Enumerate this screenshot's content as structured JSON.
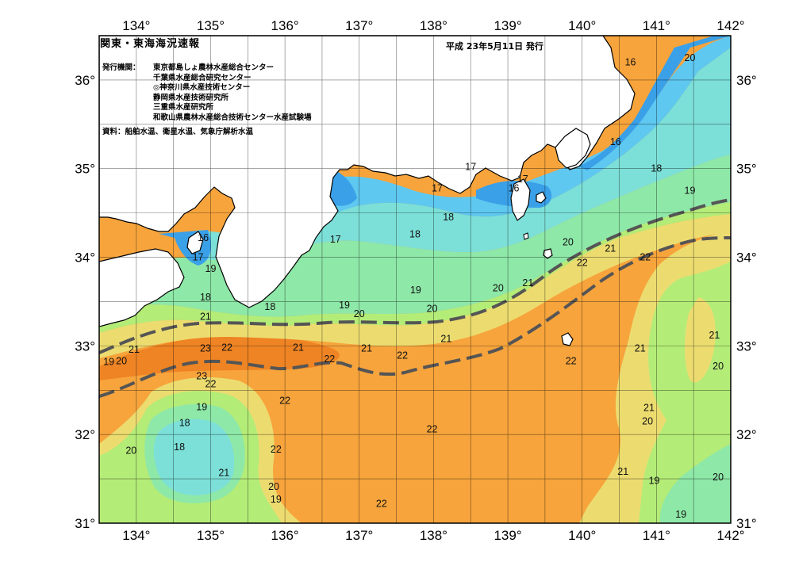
{
  "header": {
    "title": "関東・東海海況速報",
    "issued": "平成 23年5月11日 発行"
  },
  "issuer": {
    "label": "発行機関：",
    "organizations": [
      "東京都島しょ農林水産総合センター",
      "千葉県水産総合研究センター",
      "◎神奈川県水産技術センター",
      "静岡県水産技術研究所",
      "三重県水産研究所",
      "和歌山県農林水産総合技術センター水産試験場"
    ]
  },
  "sources": "資料：船舶水温、衛星水温、気象庁解析水温",
  "map": {
    "lon_range": [
      133.5,
      142
    ],
    "lat_range": [
      31,
      36.5
    ],
    "lon_ticks": [
      "134°",
      "135°",
      "136°",
      "137°",
      "138°",
      "139°",
      "140°",
      "141°",
      "142°"
    ],
    "lat_ticks": [
      "31°",
      "32°",
      "33°",
      "34°",
      "35°",
      "36°"
    ],
    "grid": "0.5 degree",
    "colors": {
      "land": "#ffffff",
      "t16": "#3aa0e8",
      "t17": "#5ec8f0",
      "t18": "#7ce0d8",
      "t19": "#8ee8a8",
      "t20": "#b4ec78",
      "t21": "#ecdc70",
      "t22": "#f7a43c",
      "t23": "#ef8424",
      "kuroshio_line": "#555555"
    },
    "isotherm_labels": [
      {
        "text": "16",
        "lon": 140.65,
        "lat": 36.2
      },
      {
        "text": "20",
        "lon": 141.45,
        "lat": 36.25
      },
      {
        "text": "16",
        "lon": 140.45,
        "lat": 35.3
      },
      {
        "text": "18",
        "lon": 141.0,
        "lat": 35.0
      },
      {
        "text": "17",
        "lon": 138.5,
        "lat": 35.02
      },
      {
        "text": "17",
        "lon": 139.2,
        "lat": 34.88
      },
      {
        "text": "16",
        "lon": 139.08,
        "lat": 34.78
      },
      {
        "text": "17",
        "lon": 138.05,
        "lat": 34.78
      },
      {
        "text": "19",
        "lon": 141.45,
        "lat": 34.75
      },
      {
        "text": "18",
        "lon": 138.2,
        "lat": 34.45
      },
      {
        "text": "18",
        "lon": 137.75,
        "lat": 34.26
      },
      {
        "text": "17",
        "lon": 136.68,
        "lat": 34.2
      },
      {
        "text": "16",
        "lon": 134.9,
        "lat": 34.22
      },
      {
        "text": "17",
        "lon": 134.83,
        "lat": 34.0
      },
      {
        "text": "19",
        "lon": 135.0,
        "lat": 33.87
      },
      {
        "text": "20",
        "lon": 139.81,
        "lat": 34.17
      },
      {
        "text": "21",
        "lon": 140.38,
        "lat": 34.1
      },
      {
        "text": "22",
        "lon": 140.0,
        "lat": 33.94
      },
      {
        "text": "22",
        "lon": 140.85,
        "lat": 34.0
      },
      {
        "text": "21",
        "lon": 139.27,
        "lat": 33.71
      },
      {
        "text": "20",
        "lon": 138.87,
        "lat": 33.65
      },
      {
        "text": "19",
        "lon": 137.76,
        "lat": 33.63
      },
      {
        "text": "18",
        "lon": 134.93,
        "lat": 33.55
      },
      {
        "text": "18",
        "lon": 135.8,
        "lat": 33.44
      },
      {
        "text": "19",
        "lon": 136.8,
        "lat": 33.46
      },
      {
        "text": "20",
        "lon": 137.0,
        "lat": 33.36
      },
      {
        "text": "20",
        "lon": 137.98,
        "lat": 33.42
      },
      {
        "text": "21",
        "lon": 134.93,
        "lat": 33.33
      },
      {
        "text": "21",
        "lon": 138.17,
        "lat": 33.08
      },
      {
        "text": "21",
        "lon": 136.18,
        "lat": 32.98
      },
      {
        "text": "21",
        "lon": 137.1,
        "lat": 32.97
      },
      {
        "text": "21",
        "lon": 133.97,
        "lat": 32.96
      },
      {
        "text": "23",
        "lon": 134.93,
        "lat": 32.97
      },
      {
        "text": "22",
        "lon": 135.22,
        "lat": 32.98
      },
      {
        "text": "22",
        "lon": 136.6,
        "lat": 32.85
      },
      {
        "text": "22",
        "lon": 137.58,
        "lat": 32.89
      },
      {
        "text": "22",
        "lon": 139.85,
        "lat": 32.83
      },
      {
        "text": "21",
        "lon": 140.78,
        "lat": 32.97
      },
      {
        "text": "21",
        "lon": 141.78,
        "lat": 33.12
      },
      {
        "text": "20",
        "lon": 141.83,
        "lat": 32.77
      },
      {
        "text": "19",
        "lon": 133.63,
        "lat": 32.82
      },
      {
        "text": "20",
        "lon": 133.8,
        "lat": 32.83
      },
      {
        "text": "23",
        "lon": 134.88,
        "lat": 32.66
      },
      {
        "text": "22",
        "lon": 135.0,
        "lat": 32.57
      },
      {
        "text": "22",
        "lon": 136.0,
        "lat": 32.38
      },
      {
        "text": "19",
        "lon": 134.88,
        "lat": 32.31
      },
      {
        "text": "18",
        "lon": 134.65,
        "lat": 32.13
      },
      {
        "text": "22",
        "lon": 137.98,
        "lat": 32.06
      },
      {
        "text": "21",
        "lon": 140.9,
        "lat": 32.3
      },
      {
        "text": "20",
        "lon": 140.88,
        "lat": 32.15
      },
      {
        "text": "18",
        "lon": 134.58,
        "lat": 31.86
      },
      {
        "text": "20",
        "lon": 133.93,
        "lat": 31.82
      },
      {
        "text": "22",
        "lon": 135.88,
        "lat": 31.83
      },
      {
        "text": "21",
        "lon": 135.18,
        "lat": 31.57
      },
      {
        "text": "21",
        "lon": 140.55,
        "lat": 31.58
      },
      {
        "text": "19",
        "lon": 140.97,
        "lat": 31.48
      },
      {
        "text": "20",
        "lon": 141.83,
        "lat": 31.52
      },
      {
        "text": "20",
        "lon": 135.85,
        "lat": 31.41
      },
      {
        "text": "19",
        "lon": 135.88,
        "lat": 31.27
      },
      {
        "text": "22",
        "lon": 137.3,
        "lat": 31.22
      },
      {
        "text": "19",
        "lon": 141.33,
        "lat": 31.1
      }
    ]
  }
}
